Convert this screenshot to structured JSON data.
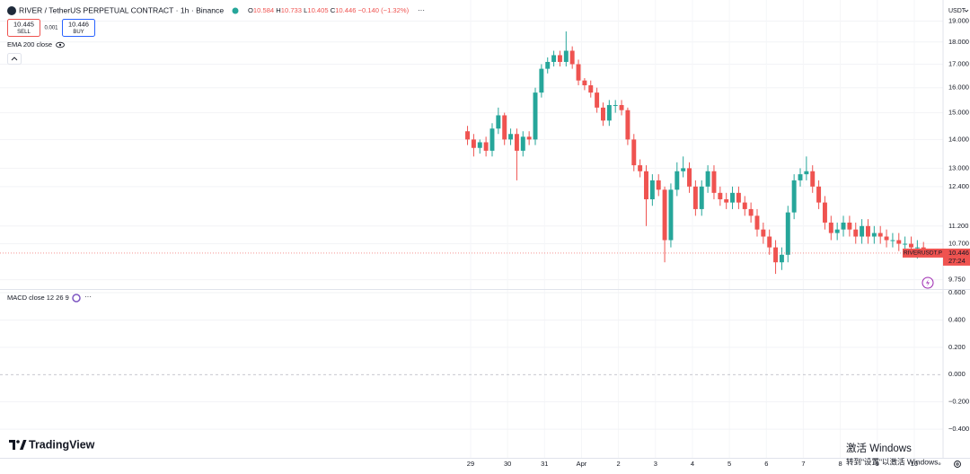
{
  "header": {
    "symbol": "RIVER / TetherUS PERPETUAL CONTRACT · 1h · Binance",
    "ohlc": [
      {
        "key": "O",
        "value": "10.584"
      },
      {
        "key": "H",
        "value": "10.733"
      },
      {
        "key": "L",
        "value": "10.405"
      },
      {
        "key": "C",
        "value": "10.446"
      }
    ],
    "change": "−0.140 (−1.32%)",
    "sell_price": "10.445",
    "sell": "SELL",
    "spread": "0.001",
    "buy_price": "10.446",
    "buy": "BUY",
    "indicator": "EMA 200 close"
  },
  "currency": "USDT",
  "logo": "TradingView",
  "watermark": {
    "title": "激活 Windows",
    "text": "转到\"设置\"以激活 Windows。"
  },
  "chart_data": [
    {
      "type": "candlestick",
      "log_scale": true,
      "grid": true,
      "up_color": "#26a69a",
      "down_color": "#ef5350",
      "x": [
        -2,
        2,
        6,
        10,
        14,
        18,
        22,
        26,
        30,
        34,
        38,
        42,
        46,
        50,
        54,
        58,
        62,
        66,
        70,
        74,
        78,
        82,
        86,
        90,
        94,
        98,
        102,
        106,
        110,
        114,
        118,
        122,
        126,
        130,
        134,
        138,
        142,
        146,
        150,
        154,
        158,
        162,
        166,
        170,
        174,
        178,
        182,
        186,
        190,
        194,
        198,
        202,
        206,
        210,
        214,
        218,
        222,
        226,
        230,
        234,
        238,
        242,
        246,
        250,
        254,
        258,
        262,
        266,
        270,
        274,
        278,
        282,
        286,
        290,
        294
      ],
      "open": [
        14.3,
        14.0,
        13.7,
        13.9,
        13.6,
        14.4,
        14.9,
        14.0,
        14.2,
        13.6,
        14.1,
        14.0,
        15.8,
        16.8,
        17.1,
        17.4,
        17.1,
        17.6,
        17.0,
        16.3,
        16.1,
        15.8,
        15.2,
        14.7,
        15.3,
        15.3,
        15.1,
        14.0,
        13.1,
        12.9,
        12.0,
        12.6,
        12.3,
        10.8,
        12.3,
        12.9,
        13.0,
        12.4,
        11.7,
        12.4,
        12.9,
        12.2,
        12.0,
        11.9,
        12.2,
        11.9,
        11.7,
        11.5,
        11.1,
        10.9,
        10.6,
        10.2,
        10.4,
        11.6,
        12.6,
        12.8,
        12.9,
        12.4,
        11.9,
        11.3,
        11.0,
        11.1,
        11.3,
        11.1,
        10.9,
        11.2,
        10.9,
        11.0,
        10.9,
        10.8,
        10.8,
        10.7,
        10.7,
        10.6,
        10.6
      ],
      "high": [
        14.5,
        14.2,
        14.0,
        14.1,
        14.6,
        15.2,
        15.0,
        14.4,
        14.4,
        14.3,
        14.3,
        16.0,
        17.0,
        17.3,
        17.6,
        17.6,
        18.5,
        17.8,
        17.2,
        16.4,
        16.3,
        16.0,
        15.4,
        15.5,
        15.5,
        15.5,
        15.2,
        14.2,
        13.3,
        13.1,
        12.8,
        12.8,
        12.4,
        12.5,
        13.2,
        13.4,
        13.2,
        12.6,
        12.6,
        13.1,
        13.1,
        12.4,
        12.2,
        12.4,
        12.4,
        12.1,
        11.9,
        11.7,
        11.3,
        11.1,
        10.8,
        10.6,
        11.8,
        12.8,
        13.0,
        13.4,
        13.1,
        12.6,
        12.1,
        11.5,
        11.3,
        11.5,
        11.5,
        11.3,
        11.4,
        11.4,
        11.2,
        11.2,
        11.1,
        11.0,
        11.0,
        10.9,
        10.9,
        10.8,
        10.75
      ],
      "low": [
        13.8,
        13.4,
        13.5,
        13.4,
        13.4,
        14.2,
        13.8,
        13.8,
        12.6,
        13.4,
        13.8,
        13.8,
        15.6,
        16.6,
        16.9,
        16.9,
        16.9,
        16.8,
        16.1,
        15.9,
        15.6,
        15.0,
        14.5,
        14.5,
        15.0,
        14.9,
        13.8,
        12.9,
        12.7,
        11.2,
        11.8,
        12.1,
        10.2,
        10.6,
        12.1,
        12.7,
        12.2,
        11.5,
        11.5,
        12.2,
        12.0,
        11.8,
        11.7,
        11.7,
        11.7,
        11.5,
        11.3,
        10.9,
        10.7,
        10.4,
        9.9,
        10.0,
        10.2,
        11.4,
        12.4,
        12.6,
        12.2,
        11.7,
        11.1,
        10.8,
        10.8,
        10.9,
        10.9,
        10.7,
        10.7,
        10.7,
        10.7,
        10.7,
        10.6,
        10.6,
        10.5,
        10.5,
        10.4,
        10.3,
        10.4
      ],
      "close": [
        14.0,
        13.7,
        13.9,
        13.6,
        14.4,
        14.9,
        14.0,
        14.2,
        13.6,
        14.1,
        14.0,
        15.8,
        16.8,
        17.1,
        17.4,
        17.1,
        17.6,
        17.0,
        16.3,
        16.1,
        15.8,
        15.2,
        14.7,
        15.3,
        15.3,
        15.1,
        14.0,
        13.1,
        12.9,
        12.0,
        12.6,
        12.3,
        10.8,
        12.3,
        12.9,
        13.0,
        12.4,
        11.7,
        12.4,
        12.9,
        12.2,
        12.0,
        11.9,
        12.2,
        11.9,
        11.7,
        11.5,
        11.1,
        10.9,
        10.6,
        10.2,
        10.4,
        11.6,
        12.6,
        12.8,
        12.9,
        12.4,
        11.9,
        11.3,
        11.0,
        11.1,
        11.3,
        11.1,
        10.9,
        11.2,
        10.9,
        11.0,
        10.9,
        10.8,
        10.8,
        10.7,
        10.7,
        10.6,
        10.6,
        10.446
      ],
      "xlim": [
        -305.5,
        306.7
      ],
      "xticks": [
        {
          "value": 0,
          "label": "29"
        },
        {
          "value": 24,
          "label": "30"
        },
        {
          "value": 48,
          "label": "31"
        },
        {
          "value": 72,
          "label": "Apr"
        },
        {
          "value": 96,
          "label": "2"
        },
        {
          "value": 120,
          "label": "3"
        },
        {
          "value": 144,
          "label": "4"
        },
        {
          "value": 168,
          "label": "5"
        },
        {
          "value": 192,
          "label": "6"
        },
        {
          "value": 216,
          "label": "7"
        },
        {
          "value": 240,
          "label": "8"
        },
        {
          "value": 264,
          "label": "9"
        },
        {
          "value": 288,
          "label": "10"
        }
      ],
      "ylim": [
        9.52,
        20.06
      ],
      "yticks": [
        {
          "value": 19,
          "label": "19.000"
        },
        {
          "value": 18,
          "label": "18.000"
        },
        {
          "value": 17,
          "label": "17.000"
        },
        {
          "value": 16,
          "label": "16.000"
        },
        {
          "value": 15,
          "label": "15.000"
        },
        {
          "value": 14,
          "label": "14.000"
        },
        {
          "value": 13,
          "label": "13.000"
        },
        {
          "value": 12.4,
          "label": "12.400"
        },
        {
          "value": 11.2,
          "label": "11.200"
        },
        {
          "value": 10.7,
          "label": "10.700"
        },
        {
          "value": 9.75,
          "label": "9.750"
        }
      ],
      "last": 10.446,
      "last_symbol": "RIVERUSDT.P",
      "countdown": "27:24"
    },
    {
      "type": "macd",
      "title": "MACD close 12 26 9",
      "ylim": [
        -0.61,
        0.62
      ],
      "yticks": [
        {
          "value": 0.6,
          "label": "0.600"
        },
        {
          "value": 0.4,
          "label": "0.400"
        },
        {
          "value": 0.2,
          "label": "0.200"
        },
        {
          "value": 0,
          "label": "0.000"
        },
        {
          "value": -0.2,
          "label": "−0.200"
        },
        {
          "value": -0.4,
          "label": "−0.400"
        }
      ]
    }
  ]
}
